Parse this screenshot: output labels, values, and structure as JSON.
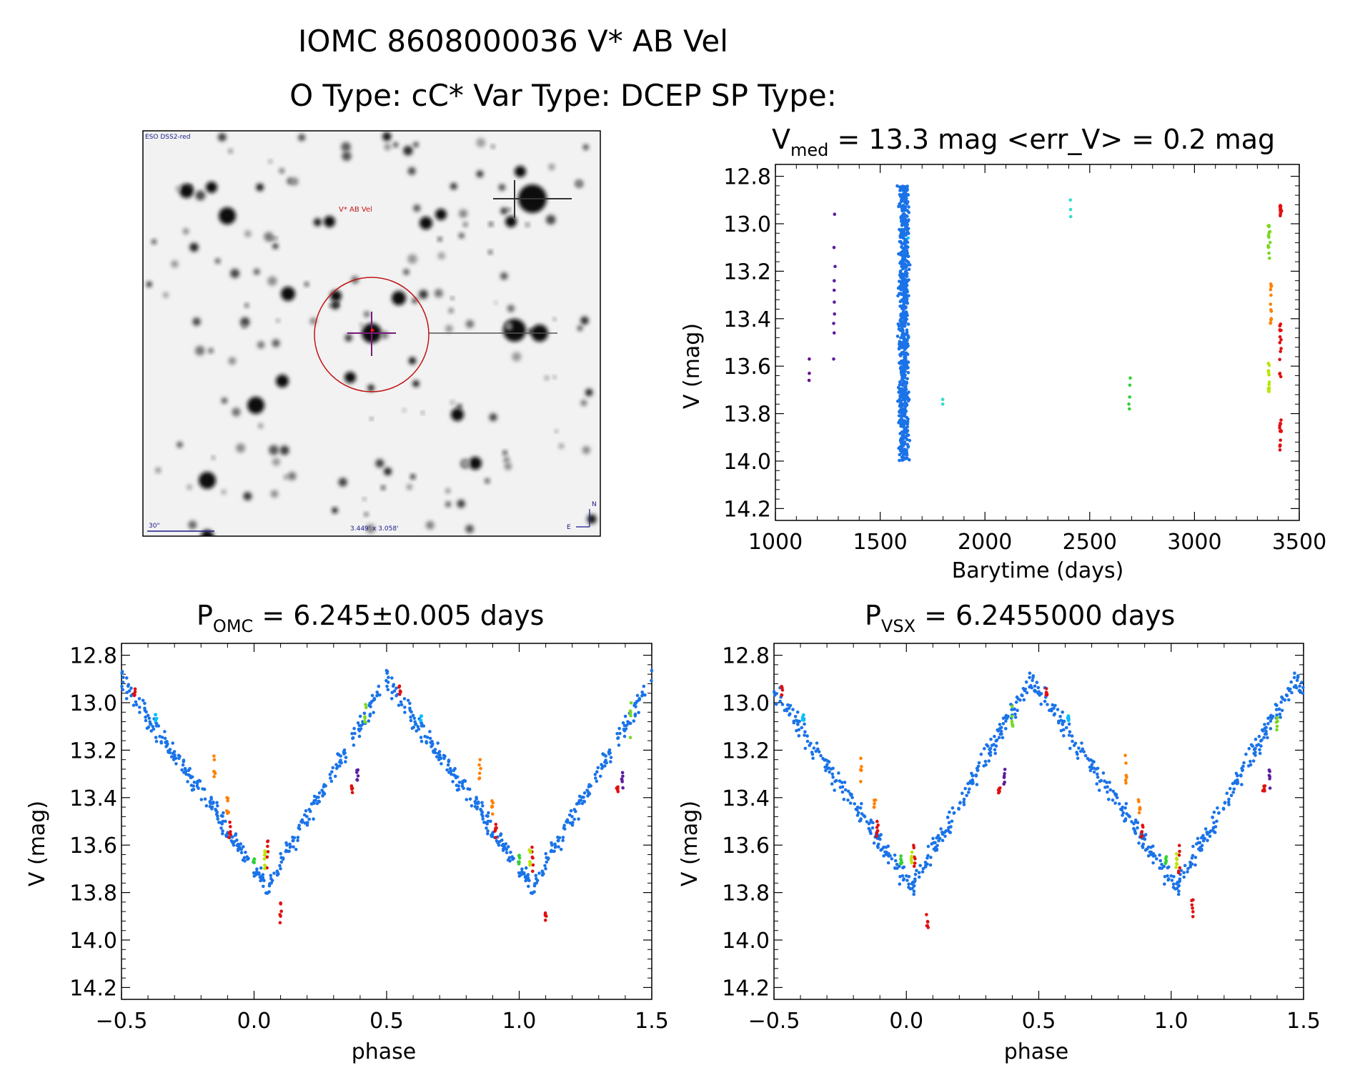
{
  "title_line1": "IOMC 8608000036   V* AB Vel",
  "title_line2": "O Type: cC*  Var Type: DCEP  SP Type:",
  "finder": {
    "survey_label": "ESO DSS2-red",
    "object_label": "V* AB Vel",
    "scale_label": "30\"",
    "fov_label": "3.449' x 3.058'",
    "north_label": "N",
    "east_label": "E"
  },
  "chart_data": [
    {
      "id": "lightcurve",
      "type": "scatter",
      "title_main": "V",
      "title_sub": "med",
      "title_rest": " = 13.3 mag <err_V> = 0.2 mag",
      "xlabel": "Barytime (days)",
      "ylabel": "V (mag)",
      "xlim": [
        1000,
        3500
      ],
      "ylim": [
        14.25,
        12.75
      ],
      "xticks": [
        1000,
        1500,
        2000,
        2500,
        3000,
        3500
      ],
      "yticks": [
        12.8,
        13.0,
        13.2,
        13.4,
        13.6,
        13.8,
        14.0,
        14.2
      ],
      "groups": [
        {
          "color": "#6a0f8f",
          "x_center": 1160,
          "mags": [
            13.57,
            13.63,
            13.66
          ]
        },
        {
          "color": "#5e1d9e",
          "x_center": 1280,
          "mags": [
            12.96,
            13.1,
            13.18,
            13.24,
            13.28,
            13.33,
            13.38,
            13.42,
            13.46,
            13.57
          ]
        },
        {
          "color": "#1a73e8",
          "x_center": 1612,
          "range": [
            12.84,
            14.0
          ]
        },
        {
          "color": "#00bfff",
          "x_center": 1635,
          "mags": [
            13.06
          ]
        },
        {
          "color": "#2de0c8",
          "x_center": 1800,
          "mags": [
            13.74,
            13.76
          ]
        },
        {
          "color": "#2de0c8",
          "x_center": 2405,
          "mags": [
            12.9,
            12.94,
            12.97
          ]
        },
        {
          "color": "#32d232",
          "x_center": 2690,
          "mags": [
            13.65,
            13.68,
            13.73,
            13.76,
            13.78
          ]
        },
        {
          "color": "#7ad81f",
          "x_center": 3355,
          "range": [
            13.0,
            13.15
          ]
        },
        {
          "color": "#b8e600",
          "x_center": 3355,
          "range": [
            13.58,
            13.72
          ]
        },
        {
          "color": "#ff8000",
          "x_center": 3365,
          "range": [
            13.25,
            13.42
          ]
        },
        {
          "color": "#e01010",
          "x_center": 3410,
          "range": [
            12.92,
            12.97
          ]
        },
        {
          "color": "#e01010",
          "x_center": 3410,
          "range": [
            13.4,
            13.65
          ]
        },
        {
          "color": "#e01010",
          "x_center": 3410,
          "range": [
            13.82,
            13.96
          ]
        }
      ]
    },
    {
      "id": "phase_omc",
      "type": "scatter",
      "title_main": "P",
      "title_sub": "OMC",
      "title_rest": " = 6.245±0.005 days",
      "xlabel": "phase",
      "ylabel": "V (mag)",
      "xlim": [
        -0.5,
        1.5
      ],
      "ylim": [
        14.25,
        12.75
      ],
      "xticks": [
        -0.5,
        0.0,
        0.5,
        1.0,
        1.5
      ],
      "xtick_labels": [
        "−0.5",
        "0.0",
        "0.5",
        "1.0",
        "1.5"
      ],
      "yticks": [
        12.8,
        13.0,
        13.2,
        13.4,
        13.6,
        13.8,
        14.0,
        14.2
      ],
      "curve": {
        "max_phase": 0.5,
        "min_phase": 0.05,
        "v_max": 12.9,
        "v_min": 13.78,
        "scatter": 0.07
      },
      "extras": [
        {
          "color": "#e01010",
          "phase": 0.05,
          "range": [
            13.58,
            13.72
          ]
        },
        {
          "color": "#e01010",
          "phase": 0.1,
          "range": [
            13.82,
            13.95
          ]
        },
        {
          "color": "#ff8000",
          "phase": -0.15,
          "range": [
            13.22,
            13.34
          ]
        },
        {
          "color": "#ff8000",
          "phase": -0.1,
          "range": [
            13.4,
            13.47
          ]
        },
        {
          "color": "#e01010",
          "phase": -0.09,
          "range": [
            13.5,
            13.58
          ]
        },
        {
          "color": "#32d232",
          "phase": 0.0,
          "range": [
            13.64,
            13.68
          ]
        },
        {
          "color": "#b8e600",
          "phase": 0.04,
          "range": [
            13.62,
            13.7
          ]
        },
        {
          "color": "#7ad81f",
          "phase": 0.42,
          "range": [
            13.0,
            13.15
          ]
        },
        {
          "color": "#5e1d9e",
          "phase": 0.39,
          "range": [
            13.28,
            13.36
          ]
        },
        {
          "color": "#e01010",
          "phase": 0.37,
          "range": [
            13.35,
            13.38
          ]
        },
        {
          "color": "#e01010",
          "phase": -0.45,
          "range": [
            12.93,
            12.97
          ]
        },
        {
          "color": "#00bfff",
          "phase": -0.37,
          "range": [
            13.05,
            13.08
          ]
        }
      ]
    },
    {
      "id": "phase_vsx",
      "type": "scatter",
      "title_main": "P",
      "title_sub": "VSX",
      "title_rest": " = 6.2455000 days",
      "xlabel": "phase",
      "ylabel": "V (mag)",
      "xlim": [
        -0.5,
        1.5
      ],
      "ylim": [
        14.25,
        12.75
      ],
      "xticks": [
        -0.5,
        0.0,
        0.5,
        1.0,
        1.5
      ],
      "xtick_labels": [
        "−0.5",
        "0.0",
        "0.5",
        "1.0",
        "1.5"
      ],
      "yticks": [
        12.8,
        13.0,
        13.2,
        13.4,
        13.6,
        13.8,
        14.0,
        14.2
      ],
      "curve": {
        "max_phase": 0.47,
        "min_phase": 0.05,
        "v_max": 12.9,
        "v_min": 13.78,
        "scatter": 0.07
      },
      "extras": [
        {
          "color": "#e01010",
          "phase": 0.03,
          "range": [
            13.58,
            13.72
          ]
        },
        {
          "color": "#e01010",
          "phase": 0.08,
          "range": [
            13.82,
            13.95
          ]
        },
        {
          "color": "#ff8000",
          "phase": -0.17,
          "range": [
            13.22,
            13.34
          ]
        },
        {
          "color": "#ff8000",
          "phase": -0.12,
          "range": [
            13.4,
            13.47
          ]
        },
        {
          "color": "#e01010",
          "phase": -0.11,
          "range": [
            13.5,
            13.58
          ]
        },
        {
          "color": "#32d232",
          "phase": -0.02,
          "range": [
            13.64,
            13.68
          ]
        },
        {
          "color": "#b8e600",
          "phase": 0.02,
          "range": [
            13.62,
            13.7
          ]
        },
        {
          "color": "#7ad81f",
          "phase": 0.4,
          "range": [
            13.0,
            13.15
          ]
        },
        {
          "color": "#5e1d9e",
          "phase": 0.37,
          "range": [
            13.28,
            13.36
          ]
        },
        {
          "color": "#e01010",
          "phase": 0.35,
          "range": [
            13.35,
            13.38
          ]
        },
        {
          "color": "#e01010",
          "phase": 0.53,
          "range": [
            12.93,
            12.97
          ]
        },
        {
          "color": "#00bfff",
          "phase": -0.39,
          "range": [
            13.05,
            13.08
          ]
        }
      ]
    }
  ]
}
